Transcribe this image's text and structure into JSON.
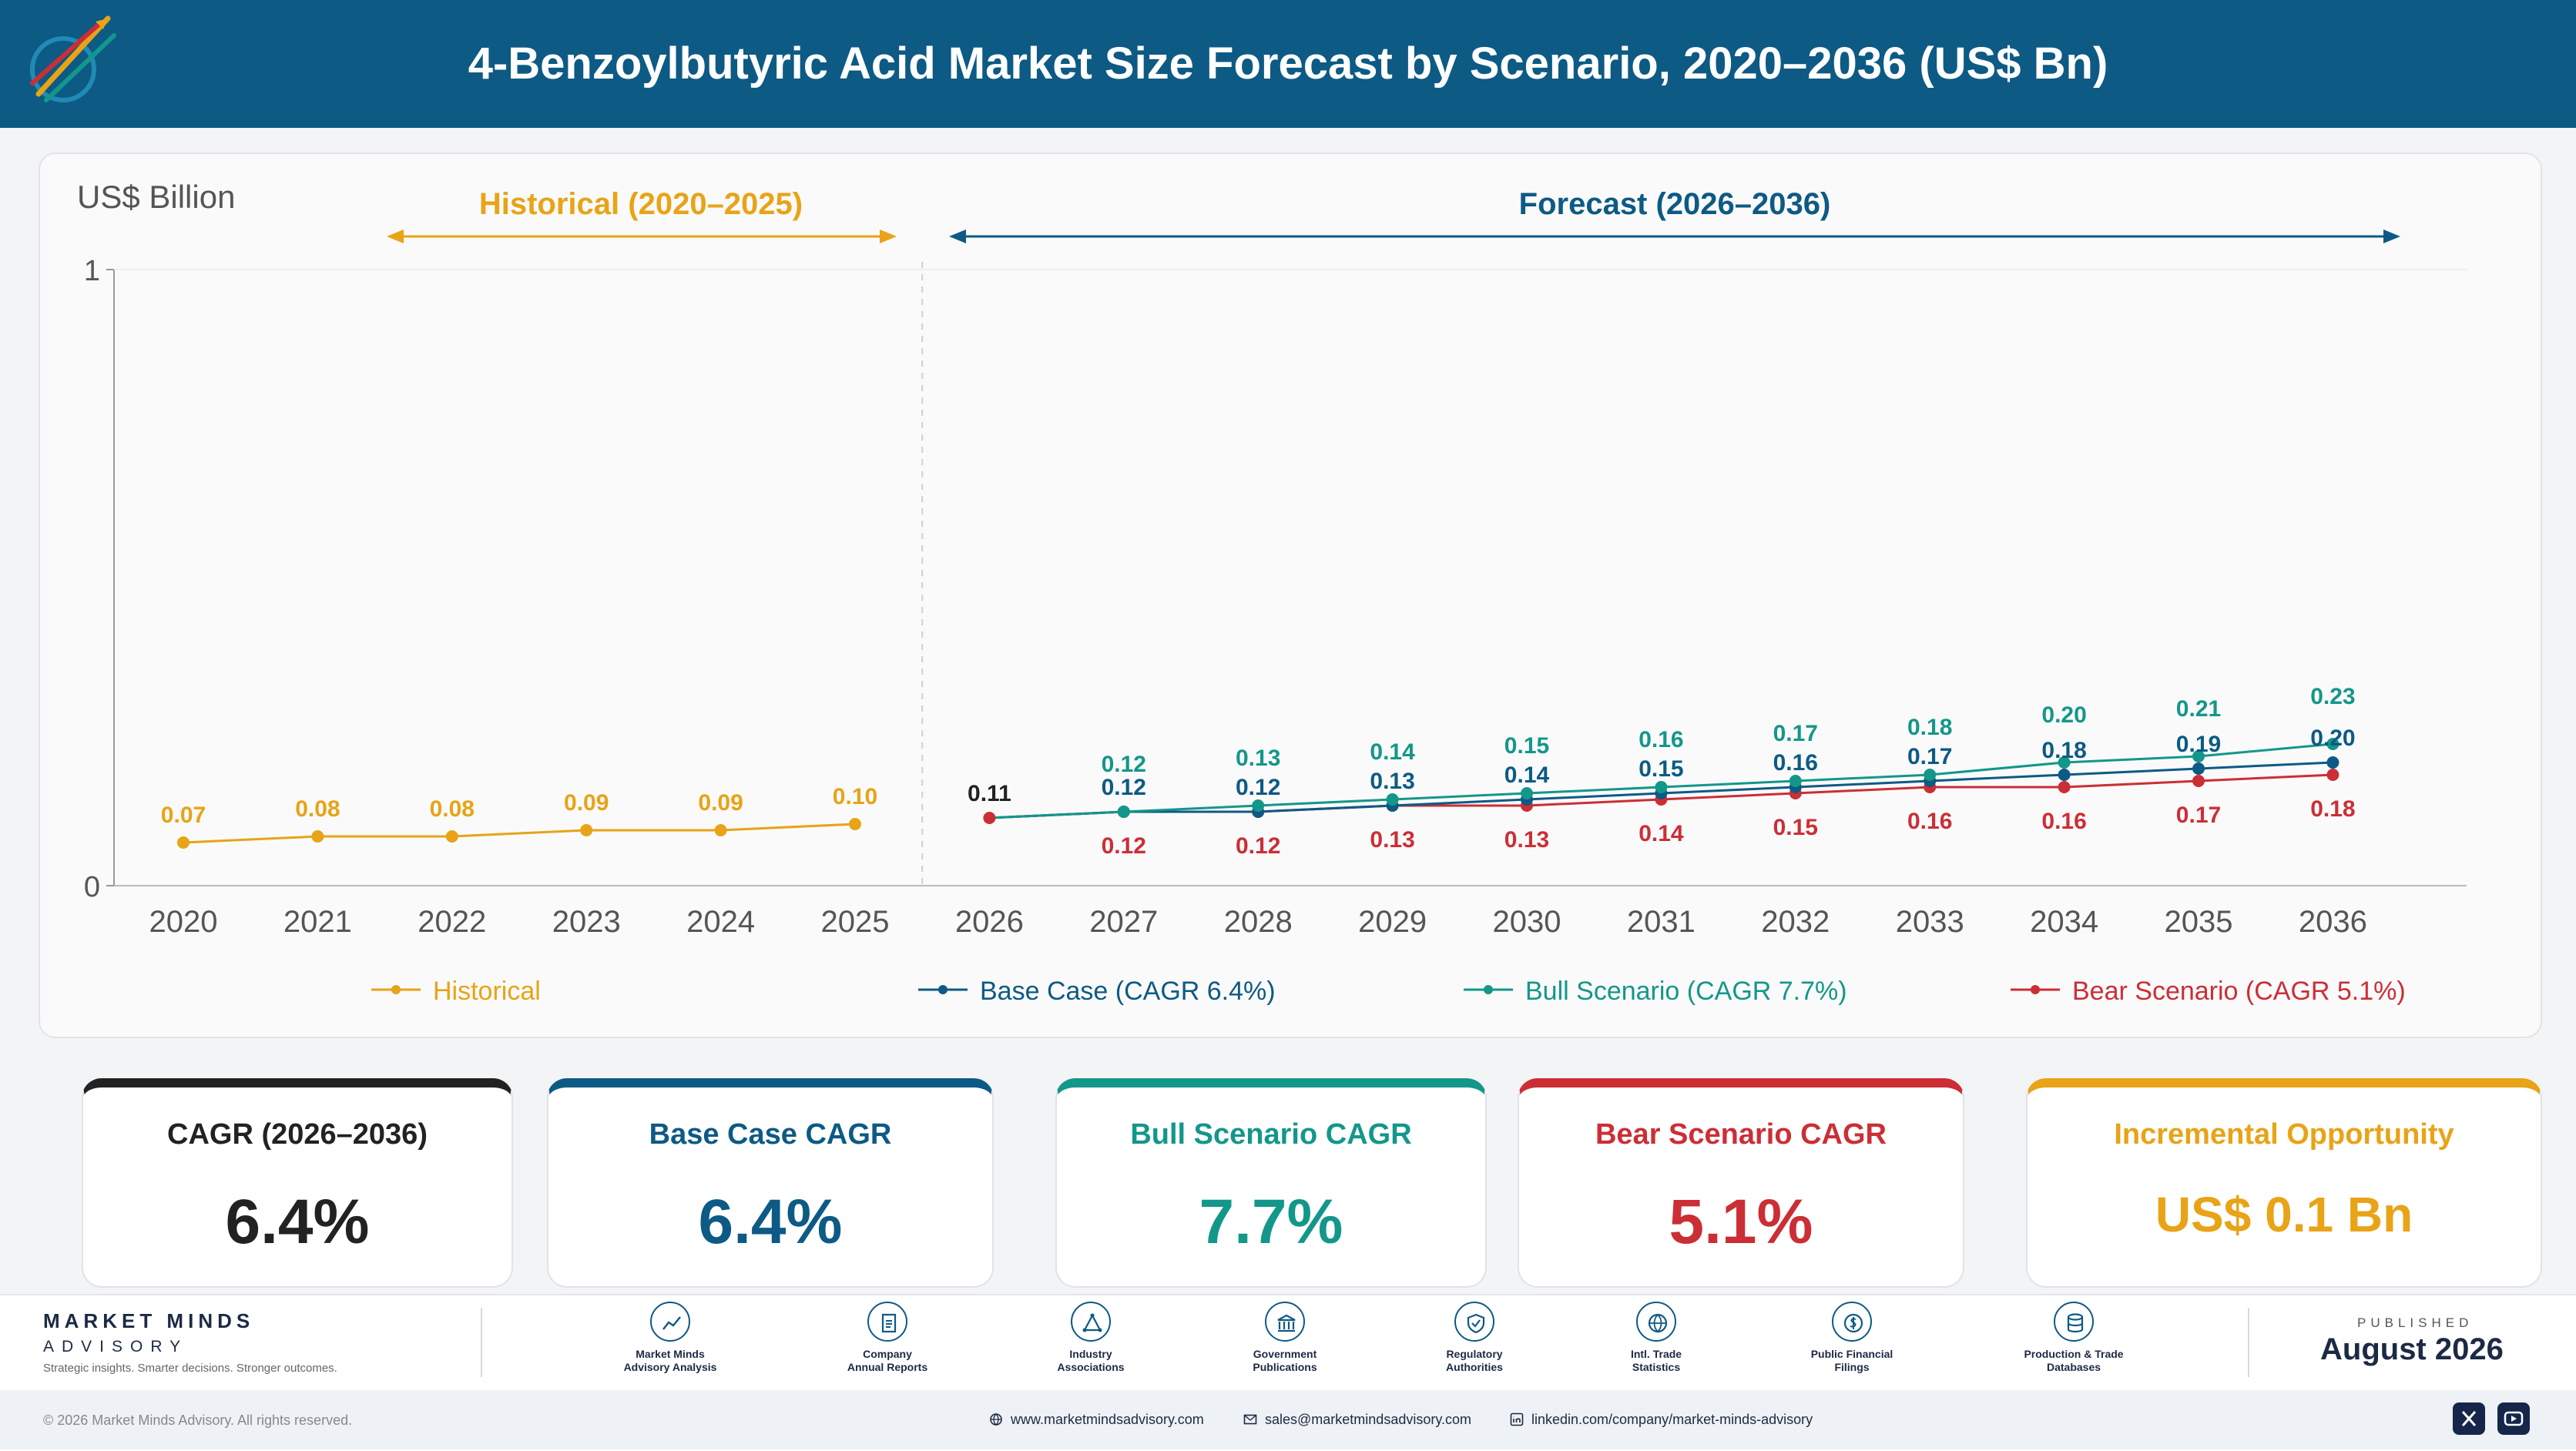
{
  "header": {
    "title": "4-Benzoylbutyric Acid Market Size Forecast by Scenario, 2020–2036 (US$ Bn)"
  },
  "colors": {
    "header_bg": "#0d5a85",
    "historical": "#e8a317",
    "base": "#0d5a85",
    "bull": "#13978a",
    "bear": "#cc2e36",
    "dark": "#222222"
  },
  "chart_data": {
    "type": "line",
    "ylabel": "US$ Billion",
    "ylim": [
      0,
      1
    ],
    "yticks": [
      "0",
      "1"
    ],
    "categories": [
      "2020",
      "2021",
      "2022",
      "2023",
      "2024",
      "2025",
      "2026",
      "2027",
      "2028",
      "2029",
      "2030",
      "2031",
      "2032",
      "2033",
      "2034",
      "2035",
      "2036"
    ],
    "periods": {
      "historical": "Historical (2020–2025)",
      "forecast": "Forecast (2026–2036)"
    },
    "series": [
      {
        "name": "Historical",
        "legend": "Historical",
        "color": "#e8a317",
        "x": [
          "2020",
          "2021",
          "2022",
          "2023",
          "2024",
          "2025"
        ],
        "values": [
          0.07,
          0.08,
          0.08,
          0.09,
          0.09,
          0.1
        ],
        "labels": [
          "0.07",
          "0.08",
          "0.08",
          "0.09",
          "0.09",
          "0.10"
        ]
      },
      {
        "name": "Base Case",
        "legend": "Base Case (CAGR 6.4%)",
        "color": "#0d5a85",
        "x": [
          "2026",
          "2027",
          "2028",
          "2029",
          "2030",
          "2031",
          "2032",
          "2033",
          "2034",
          "2035",
          "2036"
        ],
        "values": [
          0.11,
          0.12,
          0.12,
          0.13,
          0.14,
          0.15,
          0.16,
          0.17,
          0.18,
          0.19,
          0.2
        ],
        "labels": [
          "0.11",
          "0.12",
          "0.12",
          "0.13",
          "0.14",
          "0.15",
          "0.16",
          "0.17",
          "0.18",
          "0.19",
          "0.20"
        ]
      },
      {
        "name": "Bull Scenario",
        "legend": "Bull Scenario (CAGR 7.7%)",
        "color": "#13978a",
        "x": [
          "2026",
          "2027",
          "2028",
          "2029",
          "2030",
          "2031",
          "2032",
          "2033",
          "2034",
          "2035",
          "2036"
        ],
        "values": [
          0.11,
          0.12,
          0.13,
          0.14,
          0.15,
          0.16,
          0.17,
          0.18,
          0.2,
          0.21,
          0.23
        ],
        "labels": [
          "",
          "0.12",
          "0.13",
          "0.14",
          "0.15",
          "0.16",
          "0.17",
          "0.18",
          "0.20",
          "0.21",
          "0.23"
        ]
      },
      {
        "name": "Bear Scenario",
        "legend": "Bear Scenario (CAGR 5.1%)",
        "color": "#cc2e36",
        "x": [
          "2026",
          "2027",
          "2028",
          "2029",
          "2030",
          "2031",
          "2032",
          "2033",
          "2034",
          "2035",
          "2036"
        ],
        "values": [
          0.11,
          0.12,
          0.12,
          0.13,
          0.13,
          0.14,
          0.15,
          0.16,
          0.16,
          0.17,
          0.18
        ],
        "labels": [
          "",
          "0.12",
          "0.12",
          "0.13",
          "0.13",
          "0.14",
          "0.15",
          "0.16",
          "0.16",
          "0.17",
          "0.18"
        ]
      }
    ]
  },
  "kpis": [
    {
      "label": "CAGR (2026–2036)",
      "value": "6.4%",
      "color": "#222222"
    },
    {
      "label": "Base Case CAGR",
      "value": "6.4%",
      "color": "#0d5a85"
    },
    {
      "label": "Bull Scenario CAGR",
      "value": "7.7%",
      "color": "#13978a"
    },
    {
      "label": "Bear Scenario CAGR",
      "value": "5.1%",
      "color": "#cc2e36"
    },
    {
      "label": "Incremental Opportunity",
      "value": "US$ 0.1 Bn",
      "color": "#e8a317"
    }
  ],
  "footer": {
    "brand": "MARKET MINDS",
    "brand_sub": "ADVISORY",
    "tagline": "Strategic insights. Smarter decisions. Stronger outcomes.",
    "sources": [
      {
        "l1": "Market Minds",
        "l2": "Advisory Analysis",
        "icon": "chart-icon"
      },
      {
        "l1": "Company",
        "l2": "Annual Reports",
        "icon": "document-icon"
      },
      {
        "l1": "Industry",
        "l2": "Associations",
        "icon": "network-icon"
      },
      {
        "l1": "Government",
        "l2": "Publications",
        "icon": "building-icon"
      },
      {
        "l1": "Regulatory",
        "l2": "Authorities",
        "icon": "shield-icon"
      },
      {
        "l1": "Intl. Trade",
        "l2": "Statistics",
        "icon": "globe-icon"
      },
      {
        "l1": "Public Financial",
        "l2": "Filings",
        "icon": "coin-icon"
      },
      {
        "l1": "Production & Trade",
        "l2": "Databases",
        "icon": "database-icon"
      }
    ],
    "published_label": "PUBLISHED",
    "published_date": "August 2026",
    "copyright": "© 2026 Market Minds Advisory. All rights reserved.",
    "website": "www.marketmindsadvisory.com",
    "email": "sales@marketmindsadvisory.com",
    "linkedin": "linkedin.com/company/market-minds-advisory"
  }
}
